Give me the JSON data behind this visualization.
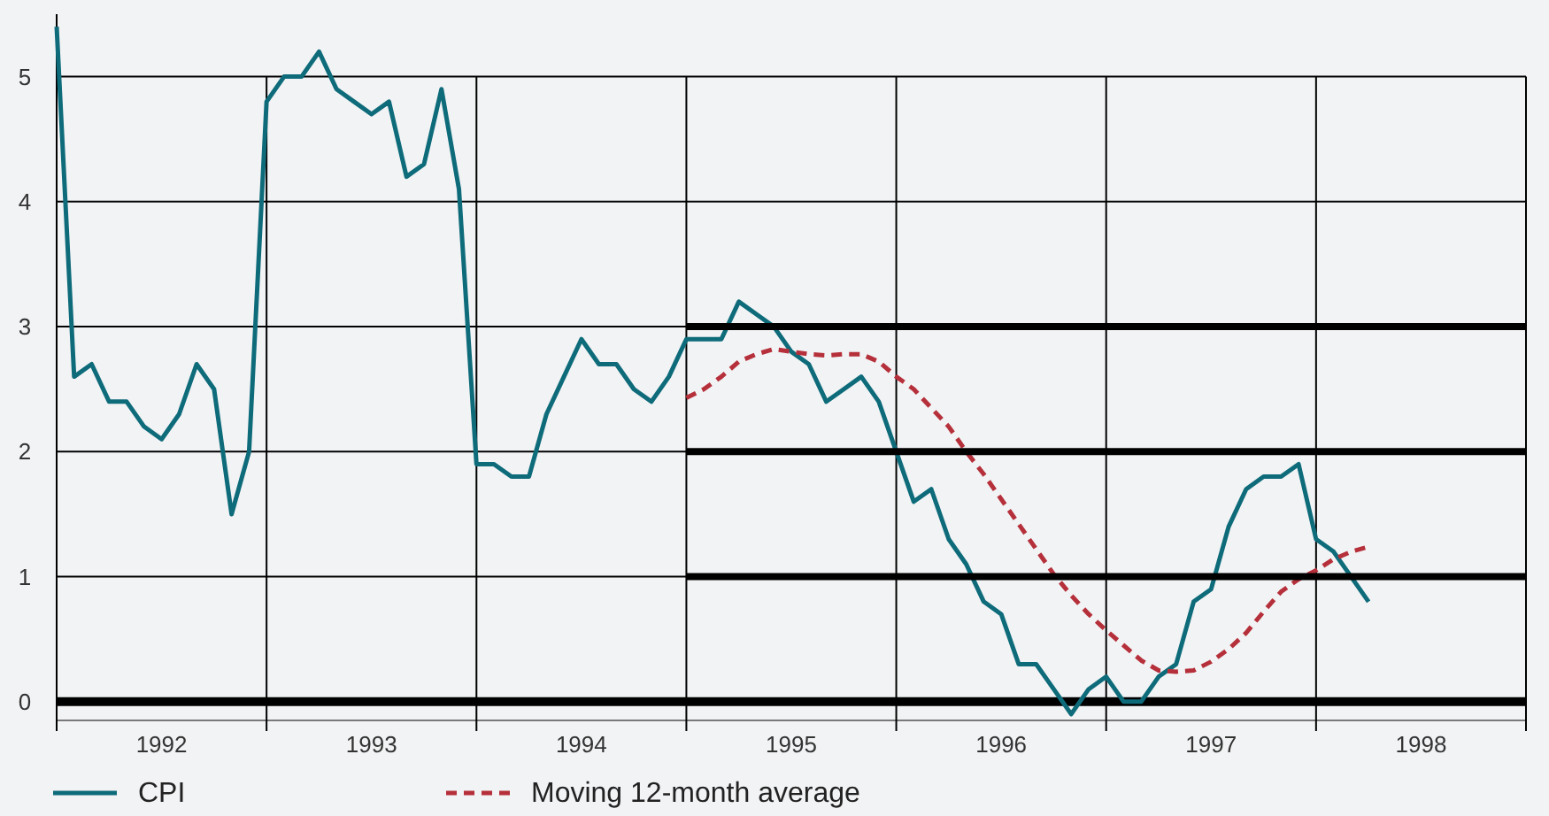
{
  "chart_data": {
    "type": "line",
    "xlim": [
      "1992-01",
      "1999-01"
    ],
    "xticks": [
      {
        "value": "1992-01",
        "label": null
      },
      {
        "value": "1992-07",
        "label": "1992"
      },
      {
        "value": "1993-01",
        "label": null
      },
      {
        "value": "1993-07",
        "label": "1993"
      },
      {
        "value": "1994-01",
        "label": null
      },
      {
        "value": "1994-07",
        "label": "1994"
      },
      {
        "value": "1995-01",
        "label": null
      },
      {
        "value": "1995-07",
        "label": "1995"
      },
      {
        "value": "1996-01",
        "label": null
      },
      {
        "value": "1996-07",
        "label": "1996"
      },
      {
        "value": "1997-01",
        "label": null
      },
      {
        "value": "1997-07",
        "label": "1997"
      },
      {
        "value": "1998-01",
        "label": null
      },
      {
        "value": "1998-07",
        "label": "1998"
      },
      {
        "value": "1999-01",
        "label": null
      }
    ],
    "ylim": [
      -0.15,
      5.5
    ],
    "yticks": [
      0,
      1,
      2,
      3,
      4,
      5
    ],
    "grid": true,
    "legend": "bottom left",
    "ref_lines": [
      {
        "axis": "y",
        "value": 0,
        "color": "#000000"
      }
    ],
    "series": [
      {
        "name": "CPI",
        "color": "#0e6b7a",
        "line_style": "solid",
        "x": [
          "1992-01",
          "1992-02",
          "1992-03",
          "1992-04",
          "1992-05",
          "1992-06",
          "1992-07",
          "1992-08",
          "1992-09",
          "1992-10",
          "1992-11",
          "1992-12",
          "1993-01",
          "1993-02",
          "1993-03",
          "1993-04",
          "1993-05",
          "1993-06",
          "1993-07",
          "1993-08",
          "1993-09",
          "1993-10",
          "1993-11",
          "1993-12",
          "1994-01",
          "1994-02",
          "1994-03",
          "1994-04",
          "1994-05",
          "1994-06",
          "1994-07",
          "1994-08",
          "1994-09",
          "1994-10",
          "1994-11",
          "1994-12",
          "1995-01",
          "1995-02",
          "1995-03",
          "1995-04",
          "1995-05",
          "1995-06",
          "1995-07",
          "1995-08",
          "1995-09",
          "1995-10",
          "1995-11",
          "1995-12",
          "1996-01",
          "1996-02",
          "1996-03",
          "1996-04",
          "1996-05",
          "1996-06",
          "1996-07",
          "1996-08",
          "1996-09",
          "1996-10",
          "1996-11",
          "1996-12",
          "1997-01",
          "1997-02",
          "1997-03",
          "1997-04",
          "1997-05",
          "1997-06",
          "1997-07",
          "1997-08",
          "1997-09",
          "1997-10",
          "1997-11",
          "1997-12",
          "1998-01",
          "1998-02",
          "1998-03",
          "1998-04"
        ],
        "values": [
          5.4,
          2.6,
          2.7,
          2.4,
          2.4,
          2.2,
          2.1,
          2.3,
          2.7,
          2.5,
          1.5,
          2.0,
          4.8,
          5.0,
          5.0,
          5.2,
          4.9,
          4.8,
          4.7,
          4.8,
          4.2,
          4.3,
          4.9,
          4.1,
          1.9,
          1.9,
          1.8,
          1.8,
          2.3,
          2.6,
          2.9,
          2.7,
          2.7,
          2.5,
          2.4,
          2.6,
          2.9,
          2.9,
          2.9,
          3.2,
          3.1,
          3.0,
          2.8,
          2.7,
          2.4,
          2.5,
          2.6,
          2.4,
          2.0,
          1.6,
          1.7,
          1.3,
          1.1,
          0.8,
          0.7,
          0.3,
          0.3,
          0.1,
          -0.1,
          0.1,
          0.2,
          0.0,
          0.0,
          0.2,
          0.3,
          0.8,
          0.9,
          1.4,
          1.7,
          1.8,
          1.8,
          1.9,
          1.3,
          1.2,
          1.0,
          0.8
        ]
      },
      {
        "name": "Moving 12-month average",
        "color": "#b5303a",
        "line_style": "dashed",
        "x": [
          "1995-01",
          "1995-02",
          "1995-03",
          "1995-04",
          "1995-05",
          "1995-06",
          "1995-07",
          "1995-08",
          "1995-09",
          "1995-10",
          "1995-11",
          "1995-12",
          "1996-01",
          "1996-02",
          "1996-03",
          "1996-04",
          "1996-05",
          "1996-06",
          "1996-07",
          "1996-08",
          "1996-09",
          "1996-10",
          "1996-11",
          "1996-12",
          "1997-01",
          "1997-02",
          "1997-03",
          "1997-04",
          "1997-05",
          "1997-06",
          "1997-07",
          "1997-08",
          "1997-09",
          "1997-10",
          "1997-11",
          "1997-12",
          "1998-01",
          "1998-02",
          "1998-03",
          "1998-04"
        ],
        "values": [
          2.43,
          2.5,
          2.6,
          2.72,
          2.78,
          2.82,
          2.8,
          2.78,
          2.77,
          2.78,
          2.78,
          2.72,
          2.6,
          2.5,
          2.35,
          2.2,
          2.0,
          1.82,
          1.62,
          1.42,
          1.22,
          1.02,
          0.85,
          0.7,
          0.57,
          0.45,
          0.33,
          0.25,
          0.24,
          0.25,
          0.32,
          0.42,
          0.55,
          0.72,
          0.88,
          0.98,
          1.05,
          1.14,
          1.2,
          1.24
        ]
      },
      {
        "color": "#000000",
        "line_style": "solid",
        "x": [
          "1995-01",
          "1999-01"
        ],
        "values": [
          1,
          1
        ]
      },
      {
        "color": "#000000",
        "line_style": "solid",
        "x": [
          "1995-01",
          "1999-01"
        ],
        "values": [
          2,
          2
        ]
      },
      {
        "color": "#000000",
        "line_style": "solid",
        "x": [
          "1995-01",
          "1999-01"
        ],
        "values": [
          3,
          3
        ]
      }
    ]
  }
}
